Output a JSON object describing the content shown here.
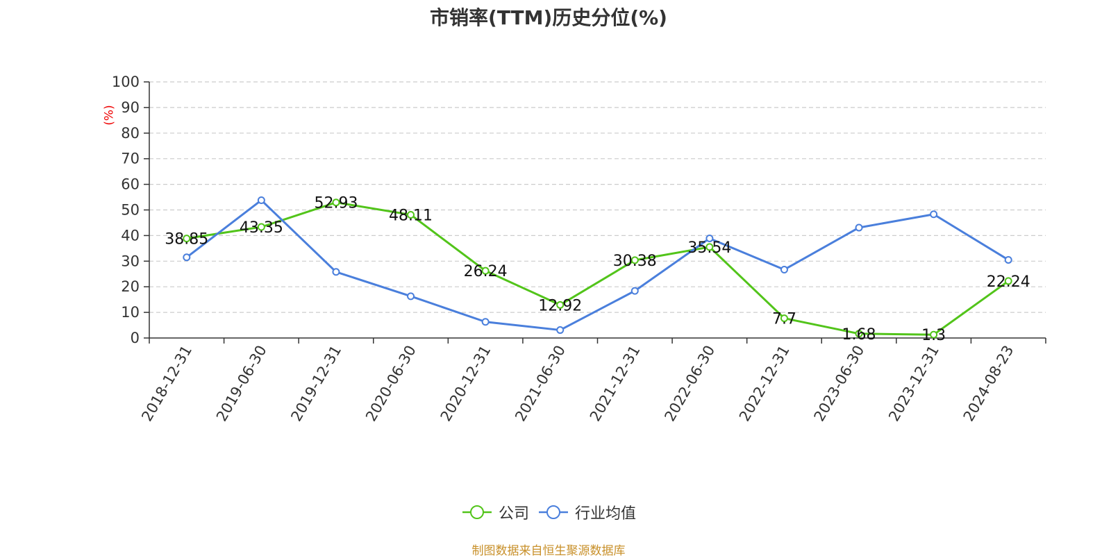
{
  "chart_data": {
    "type": "line",
    "title": "市销率(TTM)历史分位(%)",
    "ylabel": "(%)",
    "ylim": [
      0,
      100
    ],
    "yticks": [
      0,
      10,
      20,
      30,
      40,
      50,
      60,
      70,
      80,
      90,
      100
    ],
    "categories": [
      "2018-12-31",
      "2019-06-30",
      "2019-12-31",
      "2020-06-30",
      "2020-12-31",
      "2021-06-30",
      "2021-12-31",
      "2022-06-30",
      "2022-12-31",
      "2023-06-30",
      "2023-12-31",
      "2024-08-23"
    ],
    "series": [
      {
        "name": "公司",
        "color": "#52c41a",
        "values": [
          38.85,
          43.35,
          52.93,
          48.11,
          26.24,
          12.92,
          30.38,
          35.54,
          7.7,
          1.68,
          1.3,
          22.24
        ],
        "show_labels": true
      },
      {
        "name": "行业均值",
        "color": "#4a7fdc",
        "values": [
          31.5,
          53.8,
          25.8,
          16.3,
          6.3,
          3.1,
          18.4,
          38.9,
          26.7,
          43.1,
          48.3,
          30.5
        ],
        "show_labels": false
      }
    ],
    "grid": true,
    "legend_position": "bottom"
  },
  "source": "制图数据来自恒生聚源数据库"
}
